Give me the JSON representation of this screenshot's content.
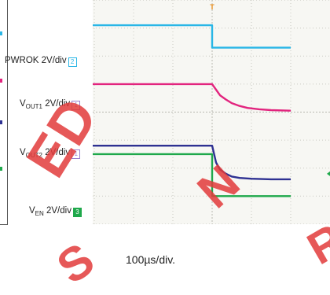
{
  "chart_data": {
    "type": "line",
    "title": "",
    "xlabel": "100µs/div.",
    "xlim": [
      -6,
      2
    ],
    "ylim": [
      -4,
      4
    ],
    "grid": true,
    "series": [
      {
        "name": "PWROK 2V/div",
        "color": "#29b6e6",
        "channel": "2",
        "x": [
          -6,
          0,
          0,
          2
        ],
        "y": [
          3.1,
          3.1,
          2.3,
          2.3
        ]
      },
      {
        "name": "VOUT1 2V/div",
        "color": "#e2247e",
        "channel": "1",
        "x": [
          -6,
          0,
          0.1,
          0.2,
          0.35,
          0.5,
          0.7,
          0.9,
          1.2,
          1.5,
          2
        ],
        "y": [
          1.0,
          1.0,
          0.8,
          0.6,
          0.45,
          0.32,
          0.22,
          0.15,
          0.1,
          0.07,
          0.05
        ]
      },
      {
        "name": "VOUT2 2V/div",
        "color": "#2e3192",
        "channel": "1",
        "x": [
          -6,
          0,
          0.05,
          0.1,
          0.2,
          0.35,
          0.5,
          0.7,
          1.0,
          1.5,
          2
        ],
        "y": [
          -1.2,
          -1.2,
          -1.5,
          -1.8,
          -2.05,
          -2.2,
          -2.3,
          -2.35,
          -2.38,
          -2.4,
          -2.4
        ]
      },
      {
        "name": "VEN 2V/div",
        "color": "#1fa84b",
        "channel": "3",
        "x": [
          -6,
          0,
          0,
          2
        ],
        "y": [
          -1.5,
          -1.5,
          -3.0,
          -3.0
        ]
      }
    ],
    "labels": {
      "pwrok": {
        "main": "PWROK 2V/div",
        "ch": "2"
      },
      "vout1": {
        "pre": "V",
        "sub": "OUT1",
        "post": " 2V/div",
        "ch": "1"
      },
      "vout2": {
        "pre": "V",
        "sub": "OUT2",
        "post": " 2V/div",
        "ch": "1"
      },
      "ven": {
        "pre": "V",
        "sub": "EN",
        "post": " 2V/div",
        "ch": "3"
      }
    },
    "trigger_marker": "T"
  },
  "watermark": {
    "color": "#e23b3b",
    "fragments": [
      "ED",
      "S",
      "N",
      "R"
    ]
  }
}
